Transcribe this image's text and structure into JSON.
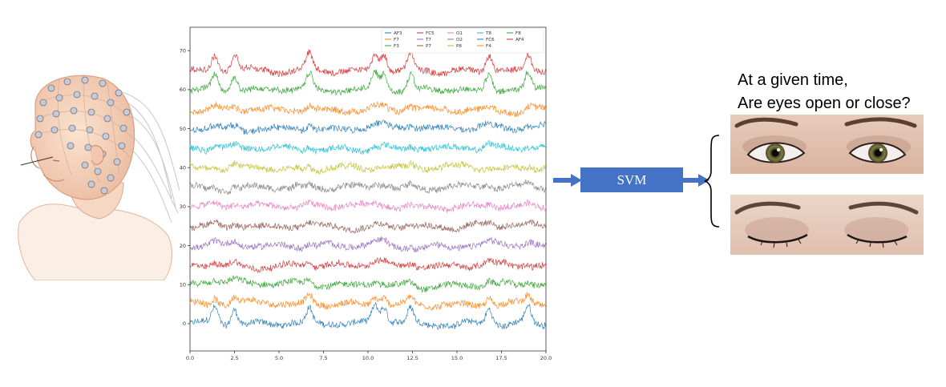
{
  "chart_data": {
    "type": "line",
    "xlim": [
      0,
      20
    ],
    "ylim": [
      -7,
      76
    ],
    "x_ticks": [
      0.0,
      2.5,
      5.0,
      7.5,
      10.0,
      12.5,
      15.0,
      17.5,
      20.0
    ],
    "x_tick_labels": [
      "0.0",
      "2.5",
      "5.0",
      "7.5",
      "10.0",
      "12.5",
      "15.0",
      "17.5",
      "20.0"
    ],
    "y_ticks": [
      0,
      10,
      20,
      30,
      40,
      50,
      60,
      70
    ],
    "y_tick_labels": [
      "0",
      "10",
      "20",
      "30",
      "40",
      "50",
      "60",
      "70"
    ],
    "grid": false,
    "legend_position": "top-right",
    "series": [
      {
        "name": "AF3",
        "offset": 0,
        "color": "#1f77b4"
      },
      {
        "name": "F7",
        "offset": 5,
        "color": "#ff7f0e"
      },
      {
        "name": "F3",
        "offset": 10,
        "color": "#2ca02c"
      },
      {
        "name": "FC5",
        "offset": 15,
        "color": "#d62728"
      },
      {
        "name": "T7",
        "offset": 20,
        "color": "#9467bd"
      },
      {
        "name": "P7",
        "offset": 25,
        "color": "#8c564b"
      },
      {
        "name": "O1",
        "offset": 30,
        "color": "#e377c2"
      },
      {
        "name": "O2",
        "offset": 35,
        "color": "#7f7f7f"
      },
      {
        "name": "P8",
        "offset": 40,
        "color": "#bcbd22"
      },
      {
        "name": "T8",
        "offset": 45,
        "color": "#17becf"
      },
      {
        "name": "FC6",
        "offset": 50,
        "color": "#1f77b4"
      },
      {
        "name": "F4",
        "offset": 55,
        "color": "#ff7f0e"
      },
      {
        "name": "F8",
        "offset": 60,
        "color": "#2ca02c"
      },
      {
        "name": "AF4",
        "offset": 65,
        "color": "#d62728"
      }
    ],
    "blink_times": [
      1.4,
      2.5,
      6.7,
      10.4,
      10.9,
      12.4,
      16.8,
      19.0
    ]
  },
  "classifier": {
    "label": "SVM",
    "color": "#4472c4"
  },
  "question": {
    "line1": "At a given time,",
    "line2": "Are eyes open or close?"
  },
  "images": {
    "head": "head-with-eeg-cap",
    "eyes_open": "eyes-open-photo",
    "eyes_closed": "eyes-closed-photo"
  }
}
